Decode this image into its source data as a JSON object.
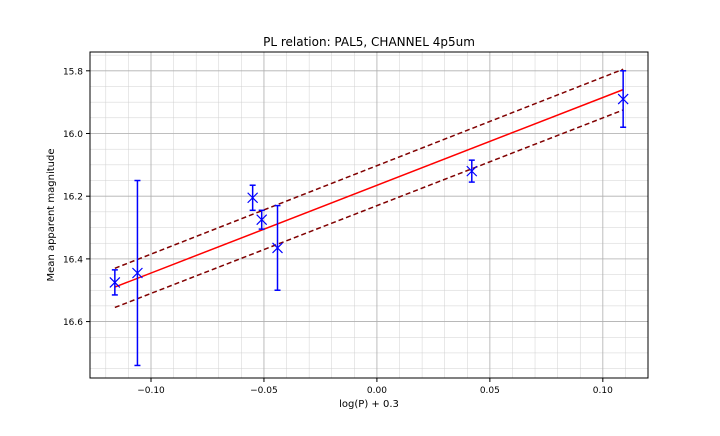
{
  "chart_data": {
    "type": "scatter",
    "title": "PL relation: PAL5, CHANNEL 4p5um",
    "xlabel": "log(P) + 0.3",
    "ylabel": "Mean apparent magnitude",
    "xlim": [
      -0.127,
      0.12
    ],
    "ylim": [
      16.78,
      15.74
    ],
    "y_inverted": true,
    "grid": true,
    "minor_grid": true,
    "x_ticks": [
      -0.1,
      -0.05,
      0.0,
      0.05,
      0.1
    ],
    "x_tick_labels": [
      "−0.10",
      "−0.05",
      "0.00",
      "0.05",
      "0.10"
    ],
    "y_ticks": [
      15.8,
      16.0,
      16.2,
      16.4,
      16.6
    ],
    "y_tick_labels": [
      "15.8",
      "16.0",
      "16.2",
      "16.4",
      "16.6"
    ],
    "points": [
      {
        "x": -0.116,
        "y": 16.475,
        "err": 0.04
      },
      {
        "x": -0.106,
        "y": 16.445,
        "err": 0.295
      },
      {
        "x": -0.055,
        "y": 16.205,
        "err": 0.04
      },
      {
        "x": -0.051,
        "y": 16.275,
        "err": 0.03
      },
      {
        "x": -0.044,
        "y": 16.365,
        "err": 0.135
      },
      {
        "x": 0.042,
        "y": 16.12,
        "err": 0.035
      },
      {
        "x": 0.109,
        "y": 15.89,
        "err": 0.09
      }
    ],
    "fit_line": {
      "x": [
        -0.116,
        0.109
      ],
      "y": [
        16.49,
        15.86
      ]
    },
    "upper_band": {
      "x": [
        -0.116,
        0.109
      ],
      "y": [
        16.43,
        15.795
      ]
    },
    "lower_band": {
      "x": [
        -0.116,
        0.109
      ],
      "y": [
        16.555,
        15.925
      ]
    },
    "colors": {
      "points": "#0000ff",
      "fit": "#ff0000",
      "bands": "#800000",
      "grid": "#d0d0d0"
    }
  }
}
